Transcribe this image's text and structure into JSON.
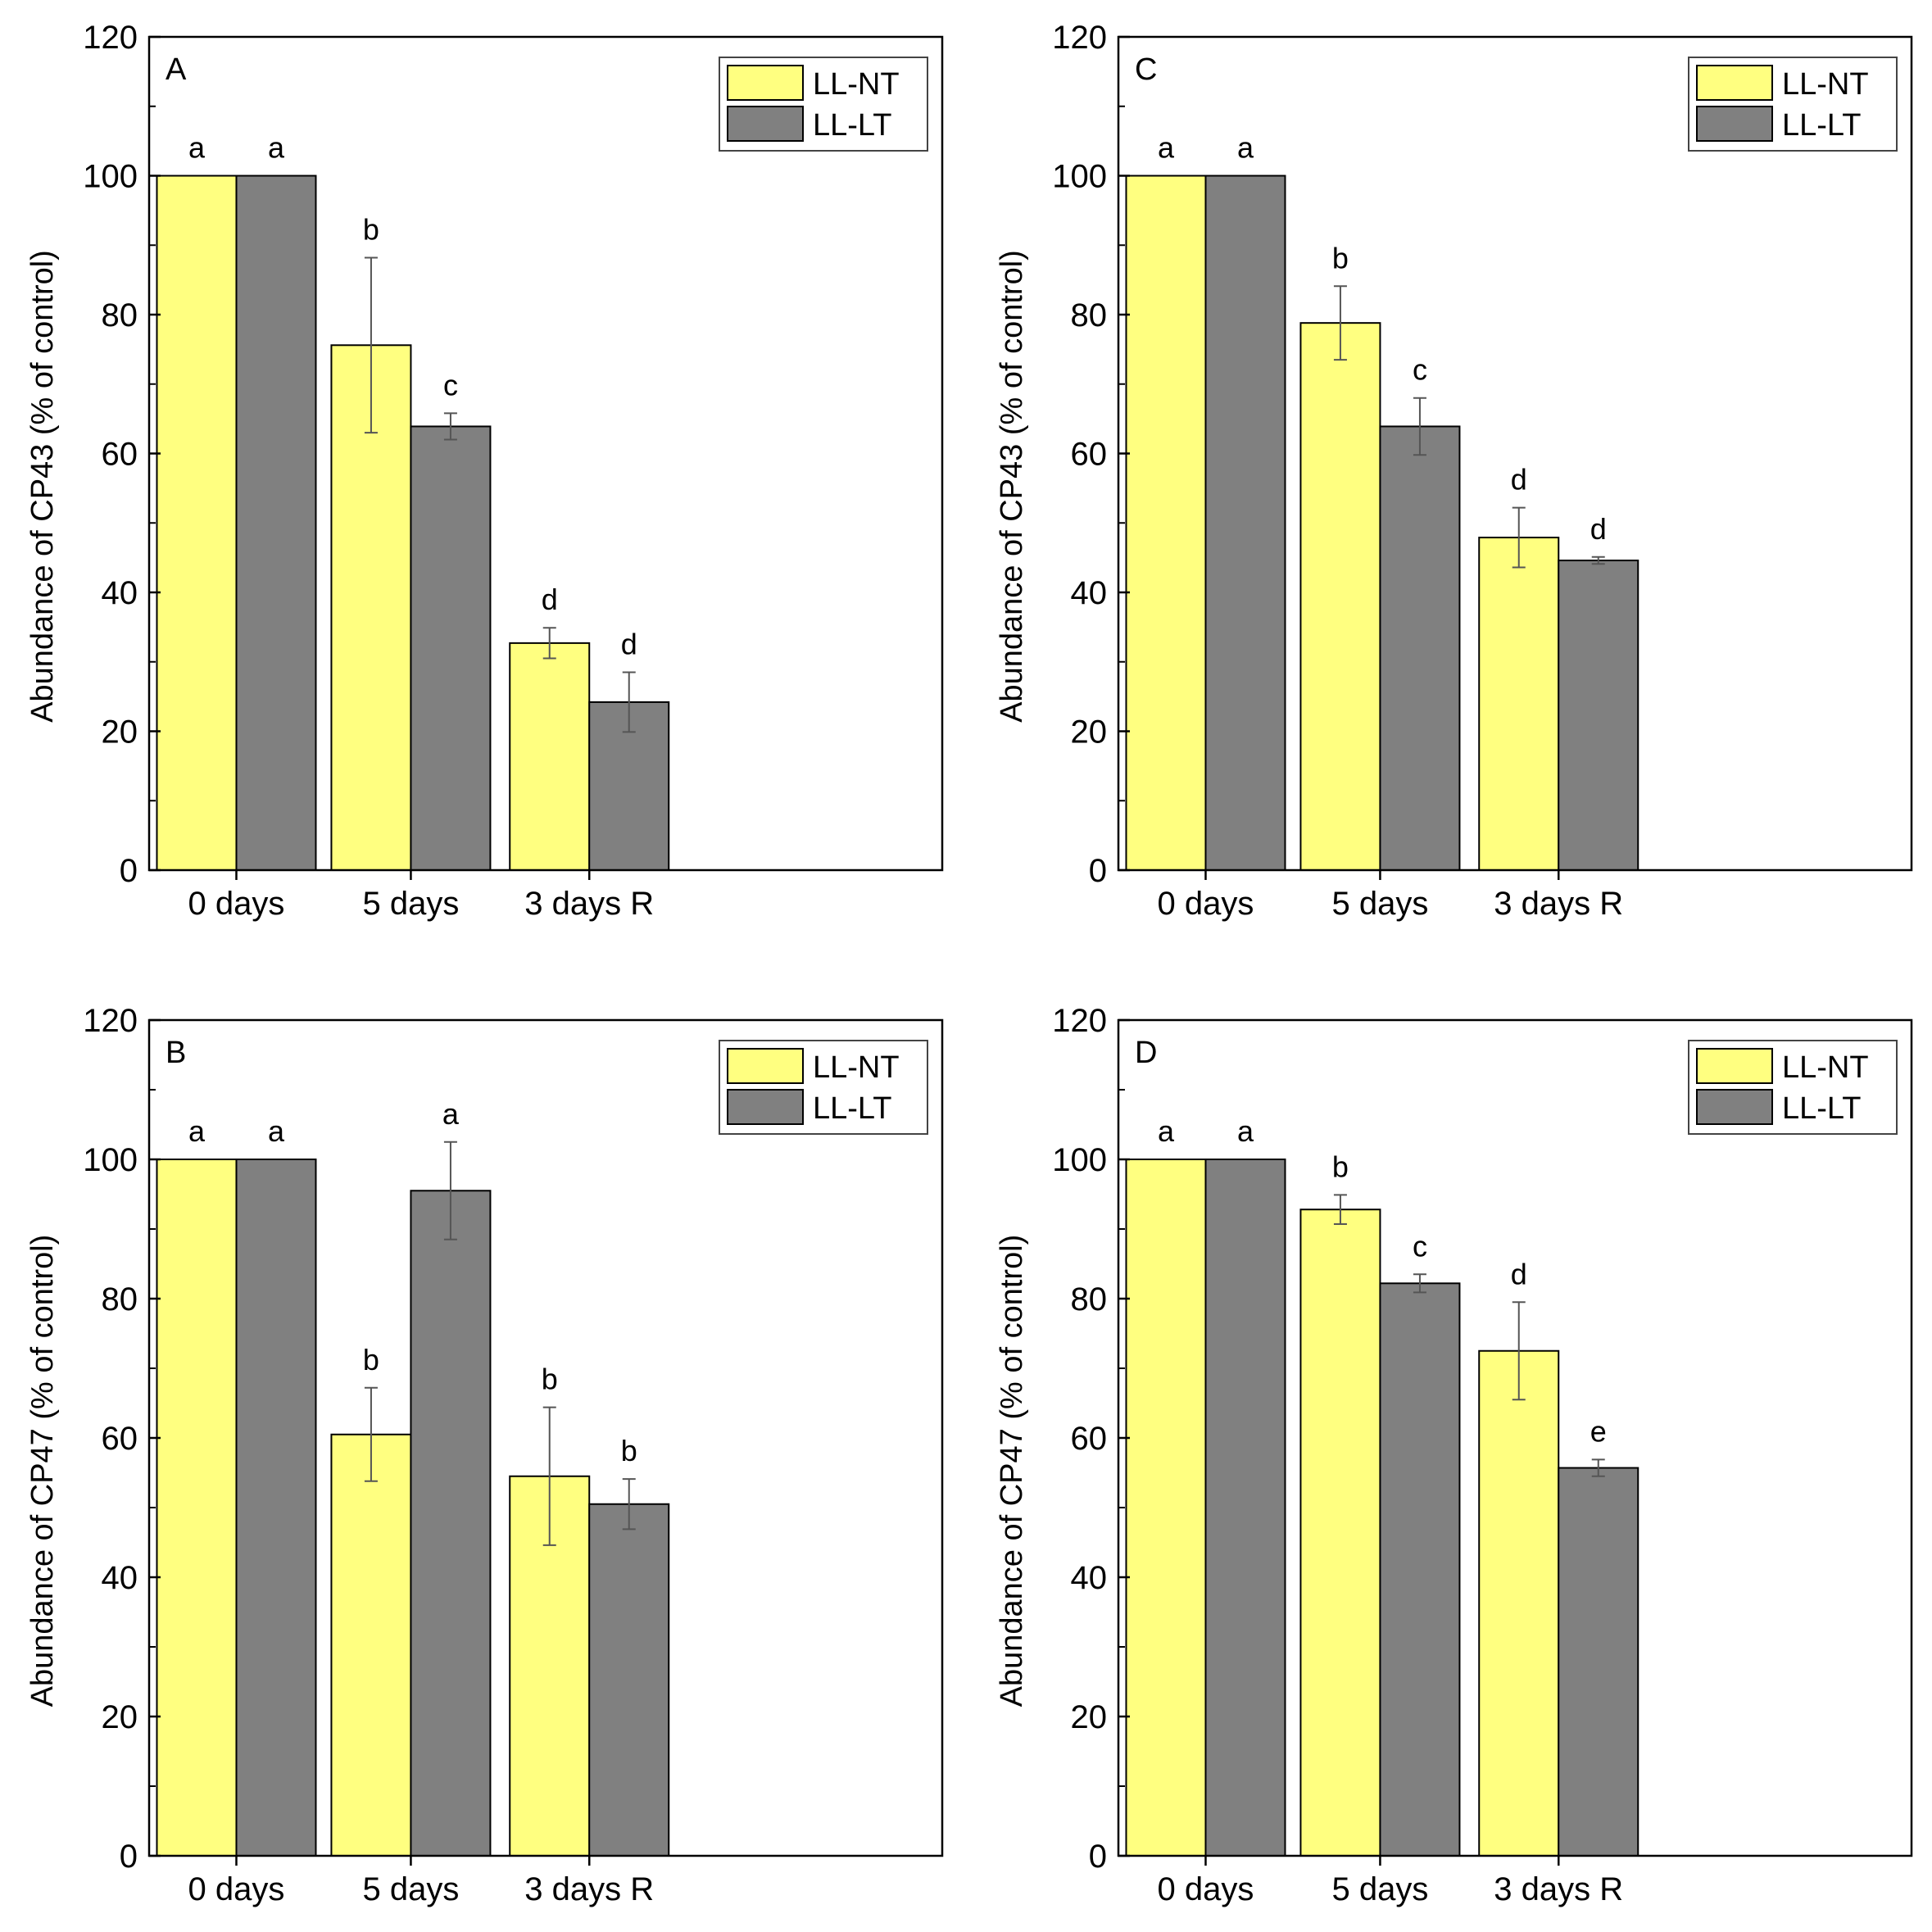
{
  "colors": {
    "LL-NT": "#ffff80",
    "LL-LT": "#808080",
    "axis": "#000000",
    "error_bar": "#555555"
  },
  "chart_data": [
    {
      "type": "bar",
      "panel": "A",
      "ylabel": "Abundance of CP43 (% of control)",
      "xlabel": "",
      "ylim": [
        0,
        120
      ],
      "yticks": [
        "0",
        "20",
        "40",
        "60",
        "80",
        "100",
        "120"
      ],
      "categories": [
        "0 days",
        "5 days",
        "3 days R"
      ],
      "legend_position": "top-right",
      "series": [
        {
          "name": "LL-NT",
          "values": [
            100,
            75.6,
            32.7
          ],
          "errors": [
            0,
            12.6,
            2.2
          ],
          "letters": [
            "a",
            "b",
            "d"
          ]
        },
        {
          "name": "LL-LT",
          "values": [
            100,
            63.9,
            24.2
          ],
          "errors": [
            0,
            1.9,
            4.3
          ],
          "letters": [
            "a",
            "c",
            "d"
          ]
        }
      ]
    },
    {
      "type": "bar",
      "panel": "C",
      "ylabel": "Abundance of CP43 (% of control)",
      "xlabel": "",
      "ylim": [
        0,
        120
      ],
      "yticks": [
        "0",
        "20",
        "40",
        "60",
        "80",
        "100",
        "120"
      ],
      "categories": [
        "0 days",
        "5 days",
        "3 days R"
      ],
      "legend_position": "top-right",
      "series": [
        {
          "name": "LL-NT",
          "values": [
            100,
            78.8,
            47.9
          ],
          "errors": [
            0,
            5.3,
            4.3
          ],
          "letters": [
            "a",
            "b",
            "d"
          ]
        },
        {
          "name": "LL-LT",
          "values": [
            100,
            63.9,
            44.6
          ],
          "errors": [
            0,
            4.1,
            0.5
          ],
          "letters": [
            "a",
            "c",
            "d"
          ]
        }
      ]
    },
    {
      "type": "bar",
      "panel": "B",
      "ylabel": "Abundance of CP47 (% of control)",
      "xlabel": "",
      "ylim": [
        0,
        120
      ],
      "yticks": [
        "0",
        "20",
        "40",
        "60",
        "80",
        "100",
        "120"
      ],
      "categories": [
        "0 days",
        "5 days",
        "3 days R"
      ],
      "legend_position": "top-right",
      "series": [
        {
          "name": "LL-NT",
          "values": [
            100,
            60.5,
            54.5
          ],
          "errors": [
            0,
            6.7,
            9.9
          ],
          "letters": [
            "a",
            "b",
            "b"
          ]
        },
        {
          "name": "LL-LT",
          "values": [
            100,
            95.5,
            50.5
          ],
          "errors": [
            0,
            7.0,
            3.6
          ],
          "letters": [
            "a",
            "a",
            "b"
          ]
        }
      ]
    },
    {
      "type": "bar",
      "panel": "D",
      "ylabel": "Abundance of CP47 (% of control)",
      "xlabel": "",
      "ylim": [
        0,
        120
      ],
      "yticks": [
        "0",
        "20",
        "40",
        "60",
        "80",
        "100",
        "120"
      ],
      "categories": [
        "0 days",
        "5 days",
        "3 days R"
      ],
      "legend_position": "top-right",
      "series": [
        {
          "name": "LL-NT",
          "values": [
            100,
            92.8,
            72.5
          ],
          "errors": [
            0,
            2.1,
            7.0
          ],
          "letters": [
            "a",
            "b",
            "d"
          ]
        },
        {
          "name": "LL-LT",
          "values": [
            100,
            82.2,
            55.7
          ],
          "errors": [
            0,
            1.3,
            1.2
          ],
          "letters": [
            "a",
            "c",
            "e"
          ]
        }
      ]
    }
  ]
}
